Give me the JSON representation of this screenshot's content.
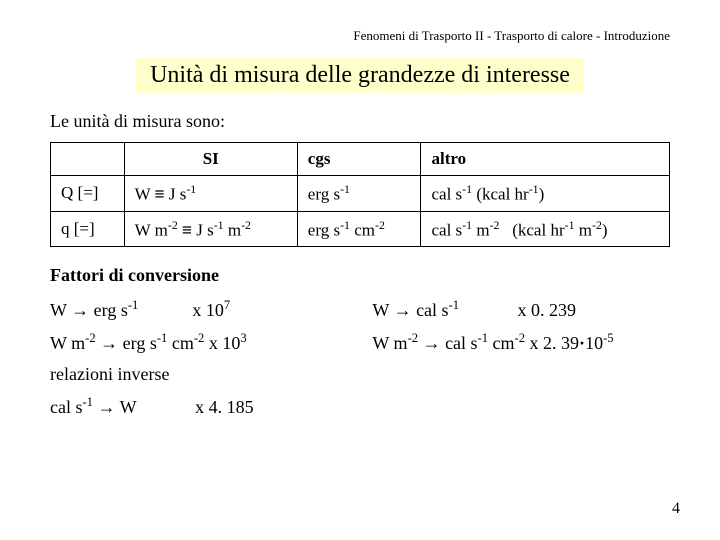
{
  "breadcrumb": "Fenomeni di Trasporto II - Trasporto di calore - Introduzione",
  "title": "Unità di misura delle grandezze di interesse",
  "intro": "Le unità di misura sono:",
  "table": {
    "headers": {
      "c1": "SI",
      "c2": "cgs",
      "c3": "altro"
    },
    "rows": [
      {
        "label": "Q [=]",
        "si_html": "W <span class='ident'>≡</span> J s<sup>-1</sup>",
        "cgs_html": "erg s<sup>-1</sup>",
        "altro_html": "cal s<sup>-1</sup> (kcal hr<sup>-1</sup>)"
      },
      {
        "label": "q [=]",
        "si_html": "W m<sup>-2</sup> <span class='ident'>≡</span> J s<sup>-1</sup> m<sup>-2</sup>",
        "cgs_html": "erg s<sup>-1</sup> cm<sup>-2</sup>",
        "altro_html": "cal s<sup>-1</sup> m<sup>-2</sup>&nbsp;&nbsp;&nbsp;(kcal hr<sup>-1</sup> m<sup>-2</sup>)"
      }
    ]
  },
  "factors_heading": "Fattori di conversione",
  "conversions": [
    {
      "left_html": "W <span class='arrow'>→</span> erg s<sup>-1</sup>&nbsp;&nbsp;&nbsp;&nbsp;&nbsp;&nbsp;&nbsp;&nbsp;&nbsp;&nbsp;&nbsp;&nbsp;x 10<sup>7</sup>",
      "right_html": "W <span class='arrow'>→</span> cal s<sup>-1</sup>&nbsp;&nbsp;&nbsp;&nbsp;&nbsp;&nbsp;&nbsp;&nbsp;&nbsp;&nbsp;&nbsp;&nbsp;&nbsp;x 0. 239"
    },
    {
      "left_html": "W m<sup>-2</sup> <span class='arrow'>→</span> erg s<sup>-1</sup> cm<sup>-2</sup> x 10<sup>3</sup>",
      "right_html": "W m<sup>-2</sup> <span class='arrow'>→</span> cal s<sup>-1</sup> cm<sup>-2</sup> x 2. 39<b>·</b>10<sup>-5</sup>"
    }
  ],
  "inverse_label": "relazioni inverse",
  "inverse_html": "cal s<sup>-1</sup> <span class='arrow'>→</span> W&nbsp;&nbsp;&nbsp;&nbsp;&nbsp;&nbsp;&nbsp;&nbsp;&nbsp;&nbsp;&nbsp;&nbsp;&nbsp;x 4. 185",
  "page_number": "4",
  "colors": {
    "title_bg": "#ffffcc",
    "text": "#000000",
    "page_bg": "#ffffff"
  }
}
